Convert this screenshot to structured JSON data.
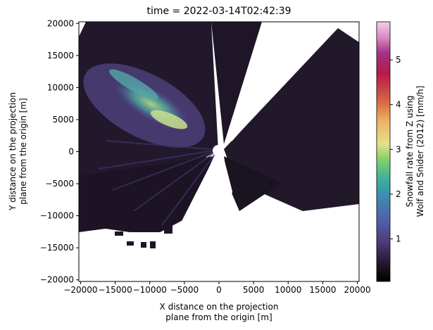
{
  "chart_data": {
    "type": "heatmap",
    "title": "time = 2022-03-14T02:42:39",
    "xlabel": [
      "X distance on the projection",
      "plane from the origin [m]"
    ],
    "ylabel": [
      "Y distance on the projection",
      "plane from the origin [m]"
    ],
    "xlim": [
      -20250,
      20250
    ],
    "ylim": [
      -20250,
      20250
    ],
    "xticks": [
      -20000,
      -15000,
      -10000,
      -5000,
      0,
      5000,
      10000,
      15000,
      20000
    ],
    "xtick_labels": [
      "−20000",
      "−15000",
      "−10000",
      "−5000",
      "0",
      "5000",
      "10000",
      "15000",
      "20000"
    ],
    "yticks": [
      -20000,
      -15000,
      -10000,
      -5000,
      0,
      5000,
      10000,
      15000,
      20000
    ],
    "ytick_labels": [
      "−20000",
      "−15000",
      "−10000",
      "−5000",
      "0",
      "5000",
      "10000",
      "15000",
      "20000"
    ],
    "colorbar": {
      "label": [
        "Snowfall rate from Z using",
        "Wolf and Snider (2012) [mm/h]"
      ],
      "range": [
        0.05,
        5.85
      ],
      "ticks": [
        1,
        2,
        3,
        4,
        5
      ],
      "tick_labels": [
        "1",
        "2",
        "3",
        "4",
        "5"
      ],
      "colormap": "cubehelix-like (black → purple → blue → teal → green → yellow → orange → red → magenta → pink)"
    },
    "grid": false,
    "field_description": "Radar-derived snowfall rate field centered at origin; highest values (~2–3.5 mm/h) in the north-west sector around x −13000..−3000, y 3000..12000; remainder mostly below 0.5 mm/h; blank wedge sectors to the north-east and south."
  },
  "colors": {
    "background": "#ffffff",
    "axis": "#000000",
    "cmap_stops": [
      "#000000",
      "#2a1a3a",
      "#4e3a78",
      "#4f5ea8",
      "#3a8eb0",
      "#3fb496",
      "#87cf6a",
      "#e2e28a",
      "#efb063",
      "#d96a3f",
      "#b8184e",
      "#a23385",
      "#d98bc4",
      "#f0d0ef"
    ]
  }
}
